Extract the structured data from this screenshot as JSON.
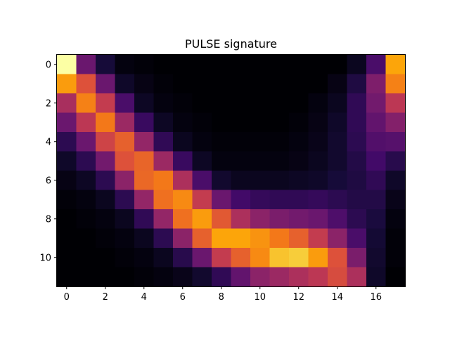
{
  "chart_data": {
    "type": "heatmap",
    "title": "PULSE signature",
    "xlabel": "",
    "ylabel": "",
    "colormap": "inferno",
    "value_range": [
      0,
      1
    ],
    "grid": false,
    "x_ticks": [
      0,
      2,
      4,
      6,
      8,
      10,
      12,
      14,
      16
    ],
    "y_ticks": [
      0,
      2,
      4,
      6,
      8,
      10
    ],
    "n_rows": 12,
    "n_cols": 18,
    "values": [
      [
        1.0,
        0.3,
        0.1,
        0.02,
        0.01,
        0.0,
        0.0,
        0.0,
        0.0,
        0.0,
        0.0,
        0.0,
        0.0,
        0.0,
        0.0,
        0.05,
        0.22,
        0.8
      ],
      [
        0.78,
        0.6,
        0.3,
        0.07,
        0.03,
        0.01,
        0.0,
        0.0,
        0.0,
        0.0,
        0.0,
        0.0,
        0.0,
        0.0,
        0.03,
        0.12,
        0.35,
        0.72
      ],
      [
        0.45,
        0.72,
        0.52,
        0.22,
        0.06,
        0.02,
        0.01,
        0.0,
        0.0,
        0.0,
        0.0,
        0.0,
        0.0,
        0.02,
        0.05,
        0.16,
        0.32,
        0.5
      ],
      [
        0.3,
        0.5,
        0.7,
        0.42,
        0.18,
        0.06,
        0.02,
        0.01,
        0.0,
        0.0,
        0.0,
        0.0,
        0.01,
        0.03,
        0.07,
        0.16,
        0.28,
        0.36
      ],
      [
        0.15,
        0.3,
        0.55,
        0.64,
        0.4,
        0.16,
        0.05,
        0.02,
        0.01,
        0.01,
        0.01,
        0.01,
        0.02,
        0.04,
        0.08,
        0.15,
        0.24,
        0.25
      ],
      [
        0.07,
        0.15,
        0.32,
        0.6,
        0.65,
        0.42,
        0.18,
        0.06,
        0.02,
        0.02,
        0.02,
        0.02,
        0.03,
        0.05,
        0.08,
        0.13,
        0.2,
        0.14
      ],
      [
        0.03,
        0.06,
        0.15,
        0.38,
        0.66,
        0.7,
        0.46,
        0.22,
        0.08,
        0.05,
        0.05,
        0.05,
        0.06,
        0.07,
        0.1,
        0.12,
        0.16,
        0.07
      ],
      [
        0.01,
        0.02,
        0.05,
        0.15,
        0.4,
        0.68,
        0.74,
        0.52,
        0.3,
        0.2,
        0.17,
        0.16,
        0.16,
        0.17,
        0.15,
        0.13,
        0.13,
        0.04
      ],
      [
        0.0,
        0.01,
        0.02,
        0.05,
        0.16,
        0.4,
        0.68,
        0.78,
        0.62,
        0.46,
        0.38,
        0.34,
        0.32,
        0.3,
        0.23,
        0.15,
        0.11,
        0.02
      ],
      [
        0.0,
        0.0,
        0.01,
        0.02,
        0.05,
        0.15,
        0.38,
        0.64,
        0.8,
        0.8,
        0.76,
        0.7,
        0.64,
        0.52,
        0.38,
        0.22,
        0.09,
        0.01
      ],
      [
        0.0,
        0.0,
        0.0,
        0.01,
        0.02,
        0.05,
        0.14,
        0.3,
        0.52,
        0.64,
        0.74,
        0.86,
        0.88,
        0.78,
        0.6,
        0.34,
        0.08,
        0.01
      ],
      [
        0.0,
        0.0,
        0.0,
        0.0,
        0.01,
        0.02,
        0.04,
        0.08,
        0.16,
        0.28,
        0.38,
        0.42,
        0.46,
        0.5,
        0.58,
        0.46,
        0.07,
        0.0
      ]
    ]
  }
}
